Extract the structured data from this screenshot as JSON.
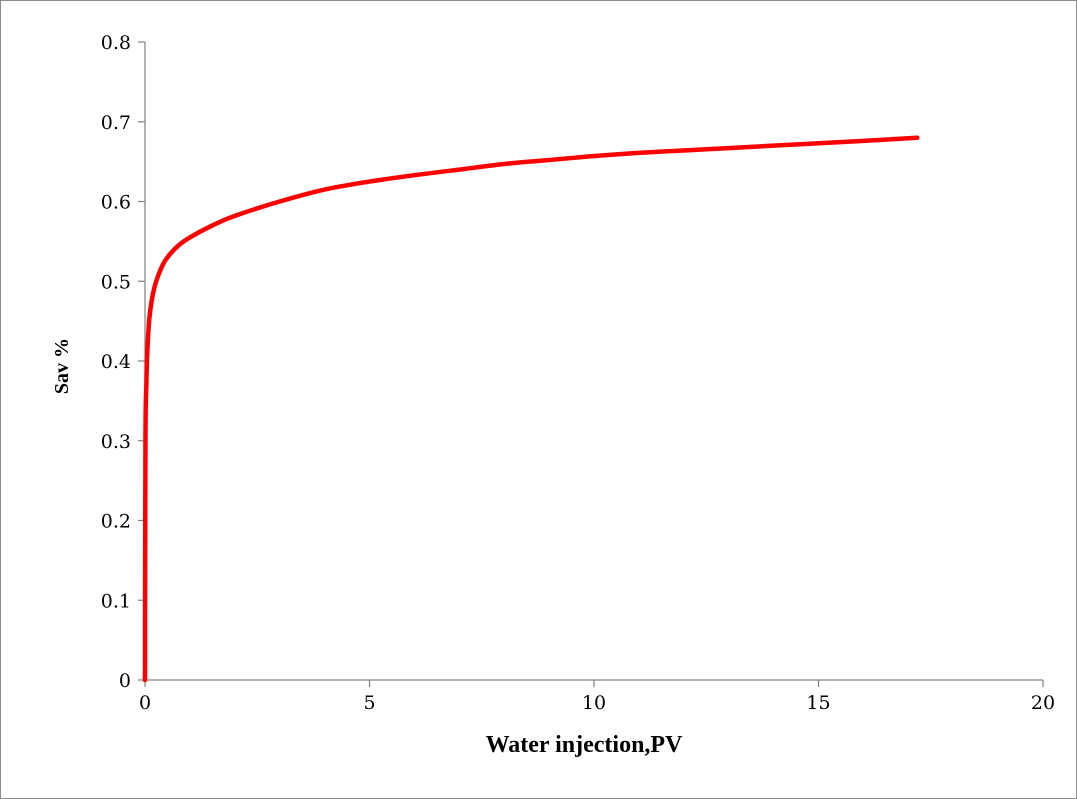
{
  "chart_data": {
    "type": "line",
    "title": "",
    "xlabel": "Water injection,PV",
    "ylabel": "Sav %",
    "xlim": [
      0,
      20
    ],
    "ylim": [
      0,
      0.8
    ],
    "x_ticks": [
      "0",
      "5",
      "10",
      "15",
      "20"
    ],
    "y_ticks": [
      "0",
      "0.1",
      "0.2",
      "0.3",
      "0.4",
      "0.5",
      "0.6",
      "0.7",
      "0.8"
    ],
    "grid": false,
    "legend": "none",
    "series": [
      {
        "color": "#ff0000",
        "x": [
          0,
          0.01,
          0.03,
          0.05,
          0.1,
          0.2,
          0.35,
          0.5,
          0.75,
          1,
          1.5,
          2,
          3,
          4,
          5,
          6,
          7,
          8,
          9,
          10,
          11,
          12,
          13,
          14,
          15,
          16,
          17.2
        ],
        "y": [
          0,
          0.3,
          0.37,
          0.41,
          0.455,
          0.49,
          0.515,
          0.53,
          0.545,
          0.555,
          0.57,
          0.582,
          0.6,
          0.615,
          0.625,
          0.633,
          0.64,
          0.647,
          0.652,
          0.657,
          0.661,
          0.664,
          0.667,
          0.67,
          0.673,
          0.676,
          0.68
        ]
      }
    ]
  }
}
